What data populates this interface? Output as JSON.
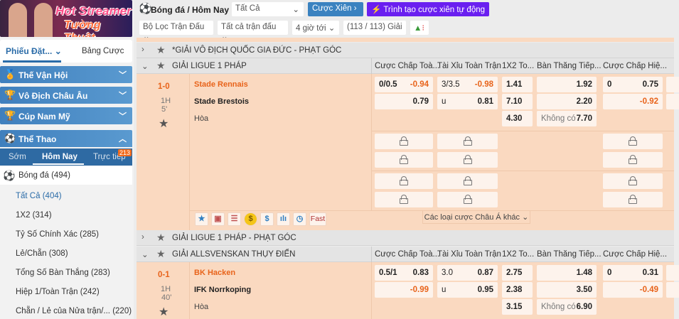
{
  "banner": {
    "line1": "Hot Streamer",
    "line2": "Tường Thuật"
  },
  "sidebar": {
    "tabs": [
      "Phiếu Đặt...",
      "Bảng Cược"
    ],
    "categories": [
      {
        "label": "Thế Vận Hội",
        "icon": "torch-icon"
      },
      {
        "label": "Vô Địch Châu Âu",
        "icon": "trophy-icon"
      },
      {
        "label": "Cúp Nam Mỹ",
        "icon": "cup-icon"
      },
      {
        "label": "Thể Thao",
        "icon": "soccer-ball-icon"
      }
    ],
    "subtabs": [
      "Sớm",
      "Hôm Nay",
      "Trực tiếp"
    ],
    "live_count": "213",
    "sport": "Bóng đá",
    "sport_count": "(494)",
    "items": [
      {
        "label": "Tất Cả",
        "count": "(404)",
        "active": true
      },
      {
        "label": "1X2",
        "count": "(314)"
      },
      {
        "label": "Tỷ Số Chính Xác",
        "count": "(285)"
      },
      {
        "label": "Lẻ/Chẵn",
        "count": "(308)"
      },
      {
        "label": "Tổng Số Bàn Thắng",
        "count": "(283)"
      },
      {
        "label": "Hiệp 1/Toàn Trận",
        "count": "(242)"
      },
      {
        "label": "Chẵn / Lẻ của Nửa trận/...",
        "count": "(220)"
      }
    ]
  },
  "topbar": {
    "crumb": "Bóng đá / Hôm Nay",
    "filter": "Tất Cả",
    "parlay": "Cược Xiên",
    "auto_parlay": "Trình tạo cược xiên tự động"
  },
  "filters": {
    "match_filter": "Bộ Lọc Trận Đấu",
    "all_matches": "Tất cả trận đấu",
    "time": "4 giờ tới",
    "league_count": "(113 / 113) Giải"
  },
  "columns": [
    "Cược Chấp Toà...",
    "Tài Xỉu Toàn Trận",
    "1X2 To...",
    "Bàn Thắng Tiếp...",
    "Cược Chấp Hiệ..."
  ],
  "leagues": {
    "l1": "*GIẢI VÔ ĐỊCH QUỐC GIA ĐỨC - PHẠT GÓC",
    "l2": "GIẢI LIGUE 1 PHÁP",
    "l3": "GIẢI LIGUE 1 PHÁP - PHẠT GÓC",
    "l4": "GIẢI ALLSVENSKAN THỤY ĐIỂN"
  },
  "draw_label": "Hòa",
  "none_label": "Không có",
  "more_bets": "Các loại cược Châu Á khác",
  "fast_label": "Fast",
  "matches": [
    {
      "score": "1-0",
      "half": "1H",
      "minute": "5'",
      "home": "Stade Rennais",
      "away": "Stade Brestois",
      "hdp": [
        [
          "0/0.5",
          "-0.94"
        ],
        [
          "",
          "0.79"
        ]
      ],
      "ou": [
        [
          "3/3.5",
          "-0.98"
        ],
        [
          "u",
          "0.81"
        ]
      ],
      "x12": [
        "1.41",
        "7.10",
        "4.30"
      ],
      "next": [
        "1.92",
        "2.20",
        "7.70"
      ],
      "hdp1h": [
        [
          "0",
          "0.75"
        ],
        [
          "",
          "-0.92"
        ]
      ]
    },
    {
      "score": "0-1",
      "half": "1H",
      "minute": "40'",
      "home": "BK Hacken",
      "away": "IFK Norrkoping",
      "hdp": [
        [
          "0.5/1",
          "0.83"
        ],
        [
          "",
          "-0.99"
        ]
      ],
      "ou": [
        [
          "3.0",
          "0.87"
        ],
        [
          "u",
          "0.95"
        ]
      ],
      "x12": [
        "2.75",
        "2.38",
        "3.15"
      ],
      "next": [
        "1.48",
        "3.50",
        "6.90"
      ],
      "hdp1h": [
        [
          "0",
          "0.31"
        ],
        [
          "",
          "-0.49"
        ]
      ]
    }
  ],
  "colors": {
    "accent": "#3a82c0",
    "purple": "#6a1ff0",
    "orange": "#e8631a",
    "row": "#fad9c0"
  }
}
